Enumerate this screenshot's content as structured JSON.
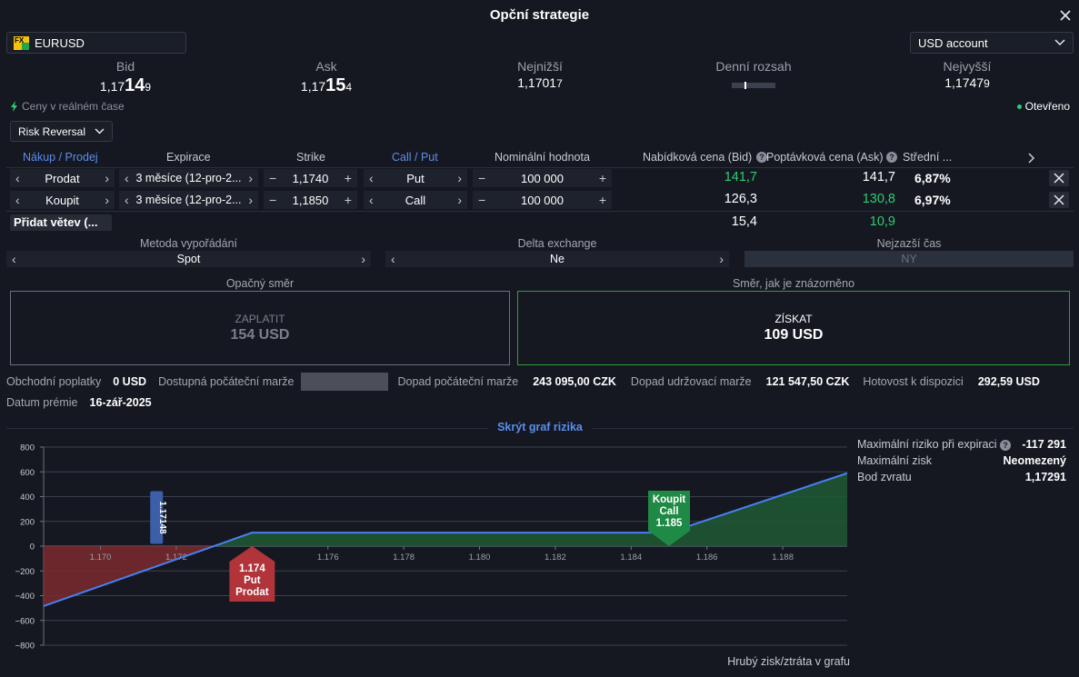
{
  "title": "Opční strategie",
  "symbol": "EURUSD",
  "symbol_icon_text": "FX",
  "account": "USD account",
  "quotes": {
    "bid": {
      "label": "Bid",
      "pre": "1,17",
      "big": "14",
      "small": "9"
    },
    "ask": {
      "label": "Ask",
      "pre": "1,17",
      "big": "15",
      "small": "4"
    },
    "low": {
      "label": "Nejnižší",
      "main": "1,1701",
      "small": "7"
    },
    "range": {
      "label": "Denní rozsah"
    },
    "high": {
      "label": "Nejvyšší",
      "main": "1,1747",
      "small": "9"
    }
  },
  "realtime_label": "Ceny v reálném čase",
  "status": "Otevřeno",
  "strategy": "Risk Reversal",
  "table_headers": {
    "side": "Nákup / Prodej",
    "expiry": "Expirace",
    "strike": "Strike",
    "type": "Call / Put",
    "notional": "Nominální hodnota",
    "bid": "Nabídková cena (Bid)",
    "ask": "Poptávková cena (Ask)",
    "mid": "Střední ..."
  },
  "legs": [
    {
      "side": "Prodat",
      "expiry": "3 měsíce (12-pro-2...",
      "strike": "1,1740",
      "type": "Put",
      "notional": "100 000",
      "bid": "141,7",
      "ask": "141,7",
      "mid": "6,87%"
    },
    {
      "side": "Koupit",
      "expiry": "3 měsíce (12-pro-2...",
      "strike": "1,1850",
      "type": "Call",
      "notional": "100 000",
      "bid": "126,3",
      "ask": "130,8",
      "mid": "6,97%"
    }
  ],
  "totals": {
    "bid": "15,4",
    "ask": "10,9"
  },
  "add_leg": "Přidat větev (...",
  "settlement": {
    "label": "Metoda vypořádání",
    "value": "Spot"
  },
  "delta": {
    "label": "Delta exchange",
    "value": "Ne"
  },
  "latest_time": {
    "label": "Nejzazší čas",
    "value": "NY"
  },
  "directions": {
    "opposite": {
      "label": "Opačný směr",
      "action": "ZAPLATIT",
      "amount": "154 USD"
    },
    "shown": {
      "label": "Směr, jak je znázorněno",
      "action": "ZÍSKAT",
      "amount": "109 USD"
    }
  },
  "info": {
    "fees_label": "Obchodní poplatky",
    "fees_value": "0 USD",
    "avail_margin_label": "Dostupná počáteční marže",
    "init_margin_label": "Dopad počáteční marže",
    "init_margin_value": "243 095,00 CZK",
    "maint_margin_label": "Dopad udržovací marže",
    "maint_margin_value": "121 547,50 CZK",
    "cash_label": "Hotovost k dispozici",
    "cash_value": "292,59 USD",
    "premium_date_label": "Datum prémie",
    "premium_date_value": "16-zář-2025"
  },
  "hide_chart": "Skrýt graf rizika",
  "risk": {
    "max_risk_label": "Maximální riziko při expiraci",
    "max_risk_value": "-117 291",
    "max_gain_label": "Maximální zisk",
    "max_gain_value": "Neomezený",
    "breakeven_label": "Bod zvratu",
    "breakeven_value": "1,17291"
  },
  "chart_footer": "Hrubý zisk/ztráta v grafu",
  "chart_data": {
    "type": "line",
    "x": [
      1.1685,
      1.174,
      1.185,
      1.1897
    ],
    "y": [
      -484,
      109,
      109,
      589
    ],
    "xlim": [
      1.1685,
      1.1897
    ],
    "ylim": [
      -800,
      800
    ],
    "xticks": [
      "1.170",
      "1.172",
      "1.174",
      "1.176",
      "1.178",
      "1.180",
      "1.182",
      "1.184",
      "1.186",
      "1.188"
    ],
    "xtick_values": [
      1.17,
      1.172,
      1.174,
      1.176,
      1.178,
      1.18,
      1.182,
      1.184,
      1.186,
      1.188
    ],
    "yticks": [
      "800",
      "600",
      "400",
      "200",
      "0",
      "−200",
      "−400",
      "−600",
      "−800"
    ],
    "ytick_values": [
      800,
      600,
      400,
      200,
      0,
      -200,
      -400,
      -600,
      -800
    ],
    "current_price": {
      "value": 1.17148,
      "label": "1.17148"
    },
    "markers": [
      {
        "x": 1.174,
        "lines": [
          "1.174",
          "Put",
          "Prodat"
        ],
        "color": "#b0343a",
        "pos": "below"
      },
      {
        "x": 1.185,
        "lines": [
          "Koupit",
          "Call",
          "1.185"
        ],
        "color": "#1f8a45",
        "pos": "above"
      }
    ],
    "colors": {
      "line": "#4a7ff0",
      "loss": "#7a2a2e",
      "gain": "#1e5a35",
      "current": "#3b5fa8"
    },
    "grid": true
  }
}
